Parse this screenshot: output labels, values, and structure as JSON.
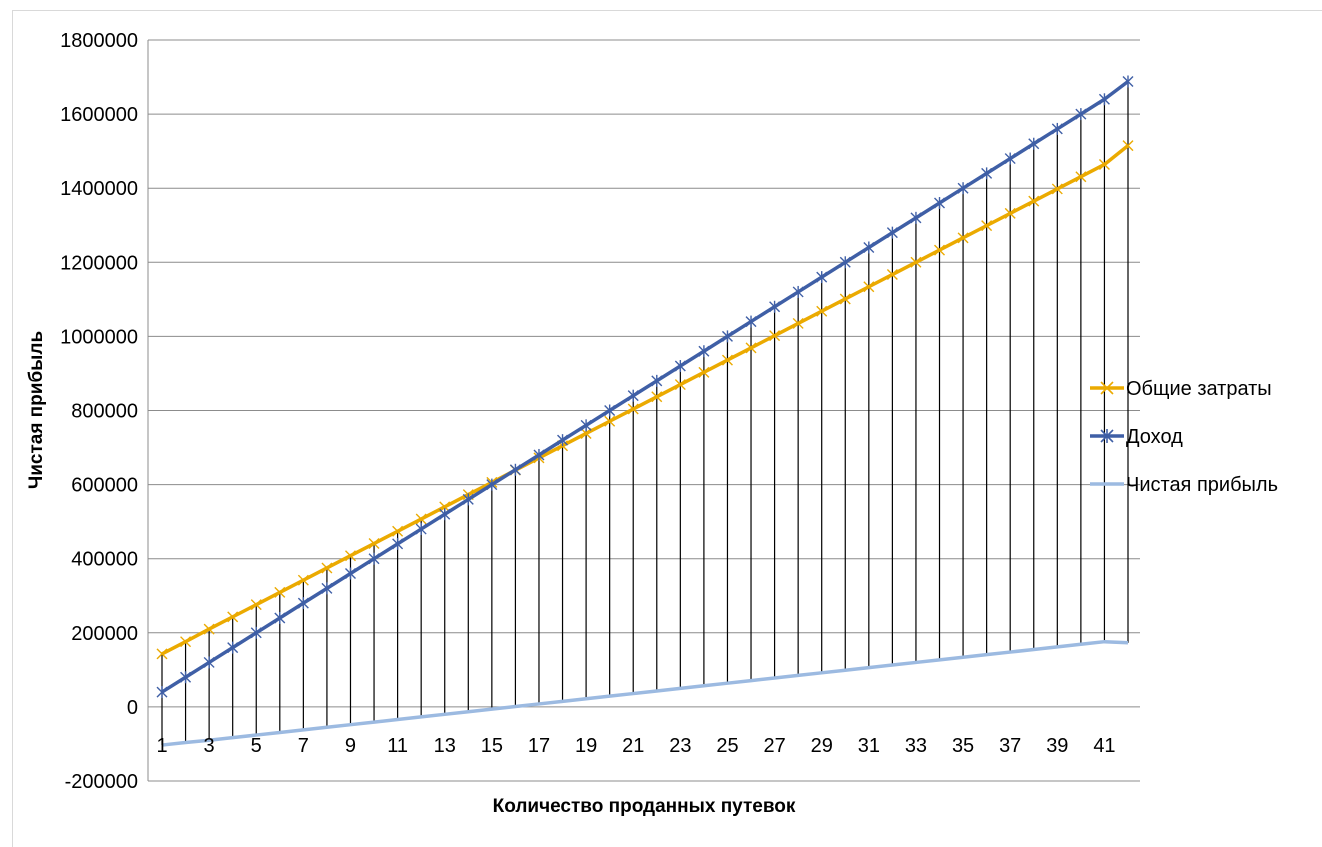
{
  "chart_data": {
    "type": "line",
    "title": "",
    "xlabel": "Количество проданных путевок",
    "ylabel": "Чистая прибыль",
    "ylim": [
      -200000,
      1800000
    ],
    "y_ticks": [
      "1800000",
      "1600000",
      "1400000",
      "1200000",
      "1000000",
      "800000",
      "600000",
      "400000",
      "200000",
      "0",
      "-200000"
    ],
    "x": [
      1,
      2,
      3,
      4,
      5,
      6,
      7,
      8,
      9,
      10,
      11,
      12,
      13,
      14,
      15,
      16,
      17,
      18,
      19,
      20,
      21,
      22,
      23,
      24,
      25,
      26,
      27,
      28,
      29,
      30,
      31,
      32,
      33,
      34,
      35,
      36,
      37,
      38,
      39,
      40,
      41,
      42
    ],
    "x_tick_labels": [
      "1",
      "3",
      "5",
      "7",
      "9",
      "11",
      "13",
      "15",
      "17",
      "19",
      "21",
      "23",
      "25",
      "27",
      "29",
      "31",
      "33",
      "35",
      "37",
      "39",
      "41"
    ],
    "grid": "horizontal",
    "drop_lines": true,
    "legend_position": "right",
    "series": [
      {
        "name": "Общие затраты",
        "color": "#ebaa00",
        "marker": "x",
        "values": [
          143000,
          176000,
          210000,
          243000,
          276000,
          309000,
          342000,
          375000,
          408000,
          441000,
          474000,
          507000,
          540000,
          573000,
          606000,
          639000,
          672000,
          705000,
          738000,
          771000,
          804000,
          837000,
          870000,
          903000,
          936000,
          969000,
          1002000,
          1035000,
          1068000,
          1101000,
          1134000,
          1167000,
          1200000,
          1233000,
          1266000,
          1299000,
          1332000,
          1365000,
          1398000,
          1431000,
          1464000,
          1515000
        ]
      },
      {
        "name": "Доход",
        "color": "#3f5fa6",
        "marker": "asterisk",
        "values": [
          40000,
          80000,
          120000,
          160000,
          200000,
          240000,
          280000,
          320000,
          360000,
          400000,
          440000,
          480000,
          520000,
          560000,
          600000,
          640000,
          680000,
          720000,
          760000,
          800000,
          840000,
          880000,
          920000,
          960000,
          1000000,
          1040000,
          1080000,
          1120000,
          1160000,
          1200000,
          1240000,
          1280000,
          1320000,
          1360000,
          1400000,
          1440000,
          1480000,
          1520000,
          1560000,
          1600000,
          1640000,
          1688000
        ]
      },
      {
        "name": "Чистая прибыль",
        "color": "#9cbae1",
        "marker": "none",
        "values": [
          -103000,
          -96000,
          -90000,
          -83000,
          -76000,
          -69000,
          -62000,
          -55000,
          -48000,
          -41000,
          -34000,
          -27000,
          -20000,
          -13000,
          -6000,
          1000,
          8000,
          15000,
          22000,
          29000,
          36000,
          43000,
          50000,
          57000,
          64000,
          71000,
          78000,
          85000,
          92000,
          99000,
          106000,
          113000,
          120000,
          127000,
          134000,
          141000,
          148000,
          155000,
          162000,
          169000,
          176000,
          173000
        ]
      }
    ]
  }
}
